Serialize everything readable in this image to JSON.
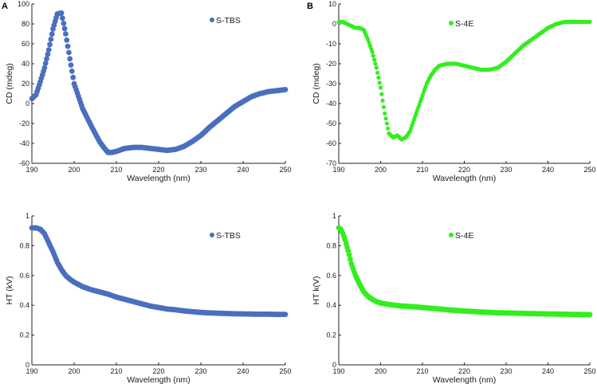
{
  "panels": {
    "a": "A",
    "b": "B"
  },
  "chart_data": [
    {
      "type": "scatter",
      "panel": "A",
      "legend": "S-TBS",
      "color": "#4a6fbe",
      "xlabel": "Wavelength (nm)",
      "ylabel": "CD (mdeg)",
      "xlim": [
        190,
        250
      ],
      "ylim": [
        -60,
        100
      ],
      "xticks": [
        190,
        200,
        210,
        220,
        230,
        240,
        250
      ],
      "yticks": [
        -60,
        -40,
        -20,
        0,
        20,
        40,
        60,
        80,
        100
      ],
      "points": [
        [
          190,
          5
        ],
        [
          191,
          9
        ],
        [
          192,
          22
        ],
        [
          193,
          36
        ],
        [
          194,
          54
        ],
        [
          195,
          75
        ],
        [
          196,
          90
        ],
        [
          197,
          91
        ],
        [
          198,
          70
        ],
        [
          199,
          45
        ],
        [
          200,
          20
        ],
        [
          202,
          -5
        ],
        [
          204,
          -22
        ],
        [
          206,
          -38
        ],
        [
          207,
          -44
        ],
        [
          208,
          -49
        ],
        [
          209,
          -49
        ],
        [
          210,
          -48
        ],
        [
          212,
          -45
        ],
        [
          214,
          -44
        ],
        [
          216,
          -44
        ],
        [
          218,
          -45
        ],
        [
          220,
          -46
        ],
        [
          222,
          -47
        ],
        [
          224,
          -46
        ],
        [
          226,
          -43
        ],
        [
          228,
          -38
        ],
        [
          230,
          -32
        ],
        [
          232,
          -24
        ],
        [
          234,
          -17
        ],
        [
          236,
          -10
        ],
        [
          238,
          -3
        ],
        [
          240,
          2
        ],
        [
          242,
          7
        ],
        [
          244,
          10
        ],
        [
          246,
          12
        ],
        [
          248,
          13
        ],
        [
          250,
          14
        ]
      ]
    },
    {
      "type": "scatter",
      "panel": "B",
      "legend": "S-4E",
      "color": "#33ee1f",
      "xlabel": "Wavelength (nm)",
      "ylabel": "CD (mdeg)",
      "xlim": [
        190,
        250
      ],
      "ylim": [
        -70,
        10
      ],
      "xticks": [
        190,
        200,
        210,
        220,
        230,
        240,
        250
      ],
      "yticks": [
        -70,
        -60,
        -50,
        -40,
        -30,
        -20,
        -10,
        0,
        10
      ],
      "points": [
        [
          190,
          1
        ],
        [
          191,
          1
        ],
        [
          192,
          0
        ],
        [
          193,
          -1
        ],
        [
          194,
          -2
        ],
        [
          195,
          -2
        ],
        [
          196,
          -3
        ],
        [
          197,
          -8
        ],
        [
          198,
          -14
        ],
        [
          199,
          -22
        ],
        [
          200,
          -32
        ],
        [
          201,
          -45
        ],
        [
          202,
          -55
        ],
        [
          203,
          -57
        ],
        [
          204,
          -56
        ],
        [
          205,
          -58
        ],
        [
          206,
          -57
        ],
        [
          207,
          -54
        ],
        [
          208,
          -48
        ],
        [
          209,
          -42
        ],
        [
          210,
          -36
        ],
        [
          211,
          -30
        ],
        [
          212,
          -26
        ],
        [
          213,
          -23
        ],
        [
          214,
          -21
        ],
        [
          216,
          -20
        ],
        [
          218,
          -20
        ],
        [
          220,
          -21
        ],
        [
          222,
          -22
        ],
        [
          224,
          -23
        ],
        [
          226,
          -23
        ],
        [
          228,
          -22
        ],
        [
          230,
          -19
        ],
        [
          232,
          -15
        ],
        [
          234,
          -11
        ],
        [
          236,
          -8
        ],
        [
          238,
          -5
        ],
        [
          240,
          -2
        ],
        [
          242,
          0
        ],
        [
          244,
          1
        ],
        [
          246,
          1
        ],
        [
          248,
          1
        ],
        [
          250,
          1
        ]
      ]
    },
    {
      "type": "scatter",
      "panel": "A",
      "legend": "S-TBS",
      "color": "#4a6fbe",
      "xlabel": "Wavelength (nm)",
      "ylabel": "HT (kV)",
      "xlim": [
        190,
        250
      ],
      "ylim": [
        0,
        1.0
      ],
      "xticks": [
        190,
        200,
        210,
        220,
        230,
        240,
        250
      ],
      "yticks": [
        0,
        0.2,
        0.4,
        0.6,
        0.8,
        1.0
      ],
      "points": [
        [
          190,
          0.92
        ],
        [
          191,
          0.92
        ],
        [
          192,
          0.91
        ],
        [
          193,
          0.88
        ],
        [
          194,
          0.82
        ],
        [
          195,
          0.76
        ],
        [
          196,
          0.69
        ],
        [
          197,
          0.64
        ],
        [
          198,
          0.6
        ],
        [
          199,
          0.575
        ],
        [
          200,
          0.555
        ],
        [
          202,
          0.525
        ],
        [
          204,
          0.505
        ],
        [
          206,
          0.49
        ],
        [
          208,
          0.475
        ],
        [
          210,
          0.455
        ],
        [
          212,
          0.44
        ],
        [
          214,
          0.425
        ],
        [
          216,
          0.41
        ],
        [
          218,
          0.395
        ],
        [
          220,
          0.385
        ],
        [
          222,
          0.375
        ],
        [
          224,
          0.37
        ],
        [
          226,
          0.362
        ],
        [
          228,
          0.357
        ],
        [
          230,
          0.352
        ],
        [
          232,
          0.349
        ],
        [
          234,
          0.347
        ],
        [
          236,
          0.345
        ],
        [
          238,
          0.343
        ],
        [
          240,
          0.342
        ],
        [
          242,
          0.341
        ],
        [
          244,
          0.34
        ],
        [
          246,
          0.34
        ],
        [
          248,
          0.339
        ],
        [
          250,
          0.339
        ]
      ]
    },
    {
      "type": "scatter",
      "panel": "B",
      "legend": "S-4E",
      "color": "#33ee1f",
      "xlabel": "Wavelength (nm)",
      "ylabel": "HT k(V)",
      "xlim": [
        190,
        250
      ],
      "ylim": [
        0,
        1.0
      ],
      "xticks": [
        190,
        200,
        210,
        220,
        230,
        240,
        250
      ],
      "yticks": [
        0,
        0.2,
        0.4,
        0.6,
        0.8,
        1.0
      ],
      "points": [
        [
          190,
          0.92
        ],
        [
          190.5,
          0.91
        ],
        [
          191,
          0.88
        ],
        [
          191.5,
          0.84
        ],
        [
          192,
          0.79
        ],
        [
          192.5,
          0.74
        ],
        [
          193,
          0.68
        ],
        [
          194,
          0.6
        ],
        [
          195,
          0.54
        ],
        [
          196,
          0.49
        ],
        [
          197,
          0.46
        ],
        [
          198,
          0.44
        ],
        [
          199,
          0.425
        ],
        [
          200,
          0.415
        ],
        [
          202,
          0.405
        ],
        [
          205,
          0.395
        ],
        [
          208,
          0.39
        ],
        [
          210,
          0.385
        ],
        [
          213,
          0.378
        ],
        [
          216,
          0.37
        ],
        [
          220,
          0.362
        ],
        [
          224,
          0.355
        ],
        [
          228,
          0.35
        ],
        [
          232,
          0.347
        ],
        [
          236,
          0.344
        ],
        [
          240,
          0.342
        ],
        [
          244,
          0.34
        ],
        [
          248,
          0.338
        ],
        [
          250,
          0.338
        ]
      ]
    }
  ]
}
